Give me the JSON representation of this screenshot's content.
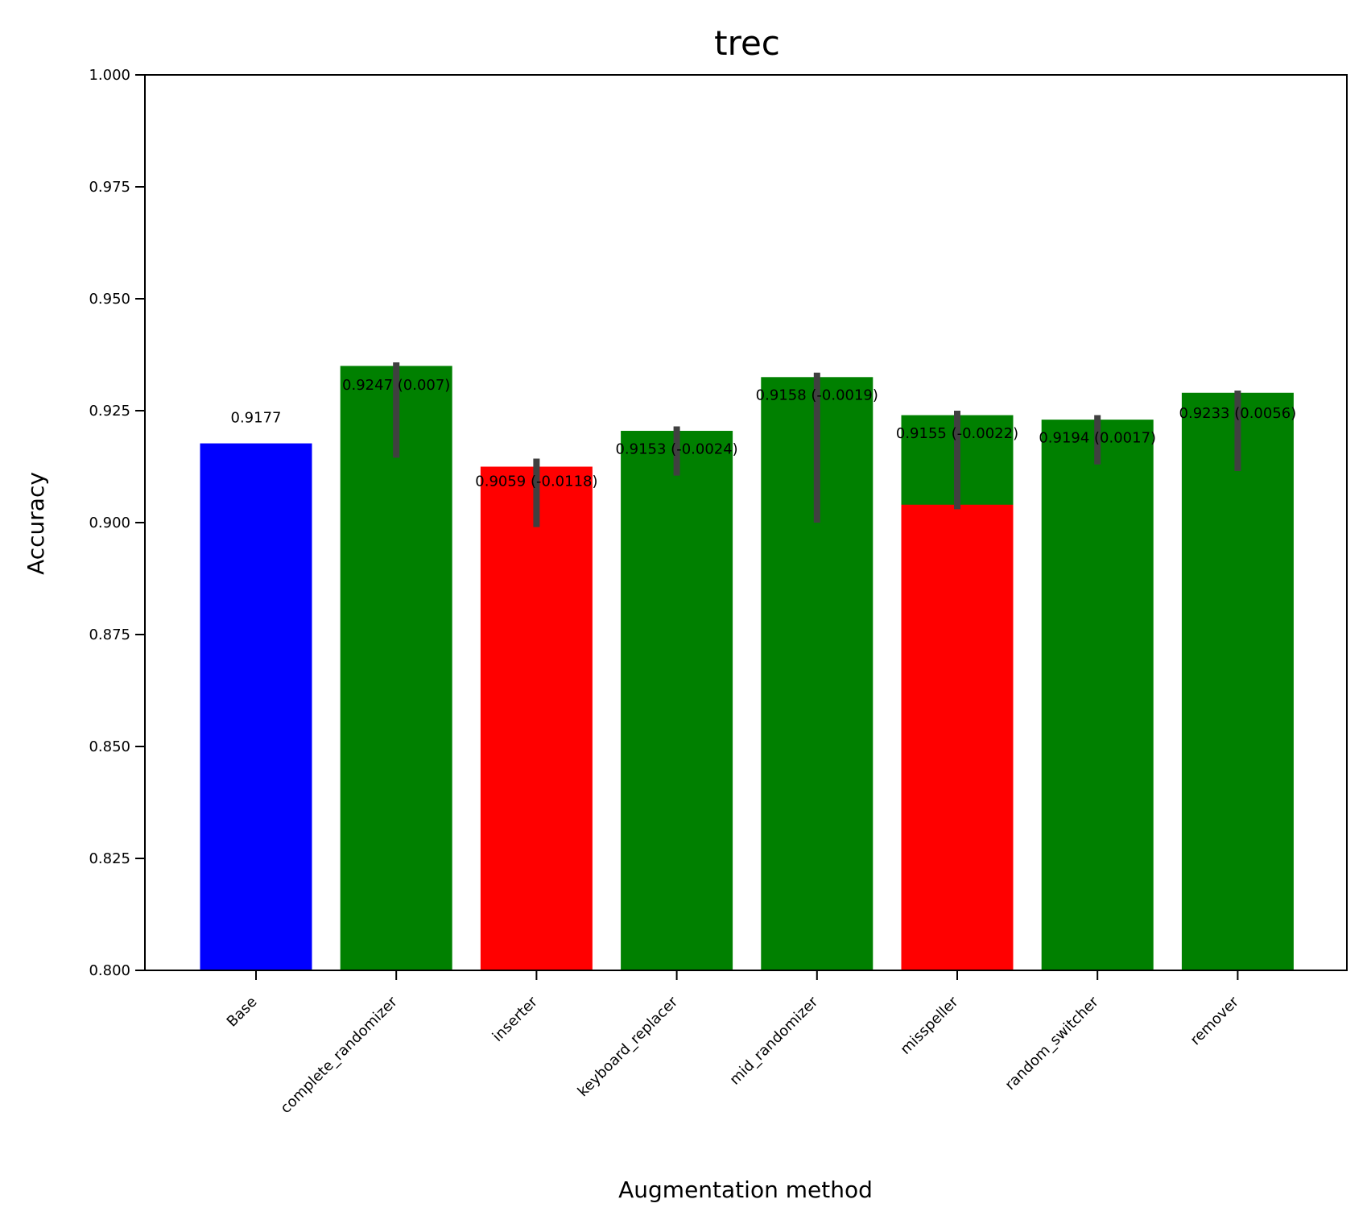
{
  "chart_data": {
    "type": "bar",
    "title": "trec",
    "xlabel": "Augmentation method",
    "ylabel": "Accuracy",
    "ylim": [
      0.8,
      1.0
    ],
    "yticks": [
      "0.800",
      "0.825",
      "0.850",
      "0.875",
      "0.900",
      "0.925",
      "0.950",
      "0.975",
      "1.000"
    ],
    "grid": false,
    "categories": [
      "Base",
      "complete_randomizer",
      "inserter",
      "keyboard_replacer",
      "mid_randomizer",
      "misspeller",
      "random_switcher",
      "remover"
    ],
    "bars": [
      {
        "category": "Base",
        "value": 0.9177,
        "color": "#0000ff",
        "label": "0.9177",
        "error": null
      },
      {
        "category": "complete_randomizer",
        "value": 0.935,
        "color": "#008000",
        "label": "0.9247 (0.007)",
        "error": [
          0.9145,
          0.9358
        ]
      },
      {
        "category": "inserter",
        "value": 0.9125,
        "color": "#ff0000",
        "label": "0.9059 (-0.0118)",
        "error": [
          0.899,
          0.9143
        ]
      },
      {
        "category": "keyboard_replacer",
        "value": 0.9205,
        "color": "#008000",
        "label": "0.9153 (-0.0024)",
        "error": [
          0.9105,
          0.9215
        ]
      },
      {
        "category": "mid_randomizer",
        "value": 0.9325,
        "color": "#008000",
        "label": "0.9158 (-0.0019)",
        "error": [
          0.9,
          0.9335
        ]
      },
      {
        "category": "misspeller",
        "value": 0.924,
        "color": "#008000",
        "label": "0.9155 (-0.0022)",
        "error": [
          0.903,
          0.925
        ],
        "overlay": {
          "value": 0.904,
          "color": "#ff0000"
        }
      },
      {
        "category": "random_switcher",
        "value": 0.923,
        "color": "#008000",
        "label": "0.9194 (0.0017)",
        "error": [
          0.913,
          0.924
        ]
      },
      {
        "category": "remover",
        "value": 0.929,
        "color": "#008000",
        "label": "0.9233 (0.0056)",
        "error": [
          0.9115,
          0.9295
        ]
      }
    ],
    "errorbar_color": "#404040"
  }
}
